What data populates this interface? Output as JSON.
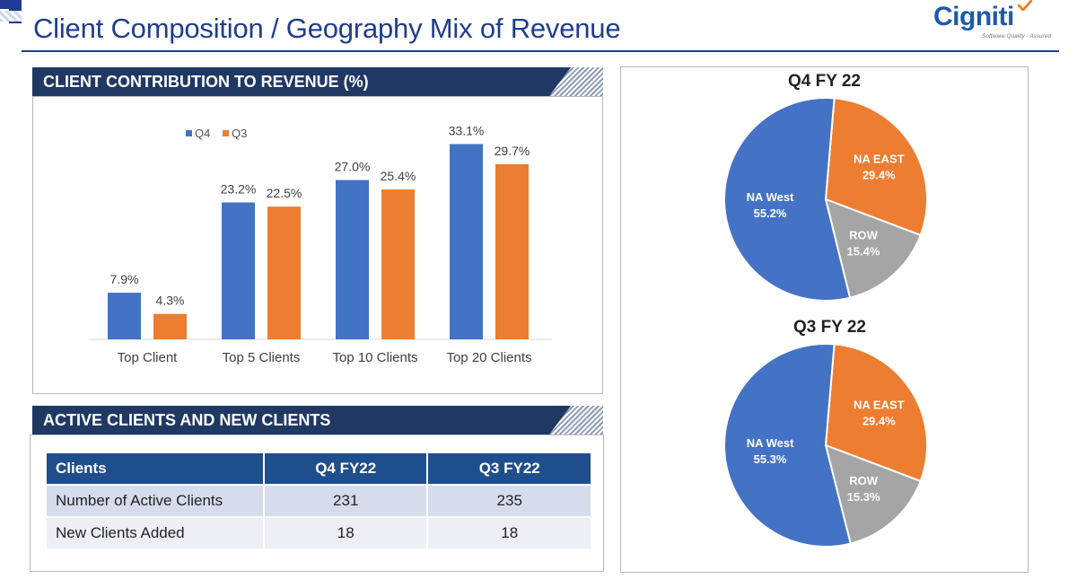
{
  "header": {
    "title": "Client Composition / Geography Mix of Revenue",
    "logo_text": "Cigniti",
    "logo_tagline": "Software Quality · Assured"
  },
  "bar_panel": {
    "heading": "CLIENT CONTRIBUTION TO REVENUE (%)"
  },
  "table_panel": {
    "heading": "ACTIVE CLIENTS AND NEW CLIENTS",
    "columns": [
      "Clients",
      "Q4 FY22",
      "Q3 FY22"
    ],
    "rows": [
      [
        "Number of Active  Clients",
        "231",
        "235"
      ],
      [
        "New Clients Added",
        "18",
        "18"
      ]
    ]
  },
  "colors": {
    "q4": "#4472c4",
    "q3": "#ed7d31",
    "row": "#a5a5a5",
    "navy": "#1f3864"
  },
  "chart_data": [
    {
      "type": "bar",
      "title": "CLIENT CONTRIBUTION TO REVENUE (%)",
      "categories": [
        "Top Client",
        "Top 5 Clients",
        "Top 10 Clients",
        "Top 20 Clients"
      ],
      "series": [
        {
          "name": "Q4",
          "values": [
            7.9,
            23.2,
            27.0,
            33.1
          ],
          "labels": [
            "7.9%",
            "23.2%",
            "27.0%",
            "33.1%"
          ]
        },
        {
          "name": "Q3",
          "values": [
            4.3,
            22.5,
            25.4,
            29.7
          ],
          "labels": [
            "4.3%",
            "22.5%",
            "25.4%",
            "29.7%"
          ]
        }
      ],
      "ylim": [
        0,
        35
      ],
      "legend": "top-left",
      "grid": false
    },
    {
      "type": "pie",
      "title": "Q4 FY 22",
      "slices": [
        {
          "name": "NA EAST",
          "value": 29.4,
          "label": "29.4%"
        },
        {
          "name": "ROW",
          "value": 15.4,
          "label": "15.4%"
        },
        {
          "name": "NA West",
          "value": 55.2,
          "label": "55.2%"
        }
      ]
    },
    {
      "type": "pie",
      "title": "Q3 FY 22",
      "slices": [
        {
          "name": "NA EAST",
          "value": 29.4,
          "label": "29.4%"
        },
        {
          "name": "ROW",
          "value": 15.3,
          "label": "15.3%"
        },
        {
          "name": "NA West",
          "value": 55.3,
          "label": "55.3%"
        }
      ]
    }
  ]
}
